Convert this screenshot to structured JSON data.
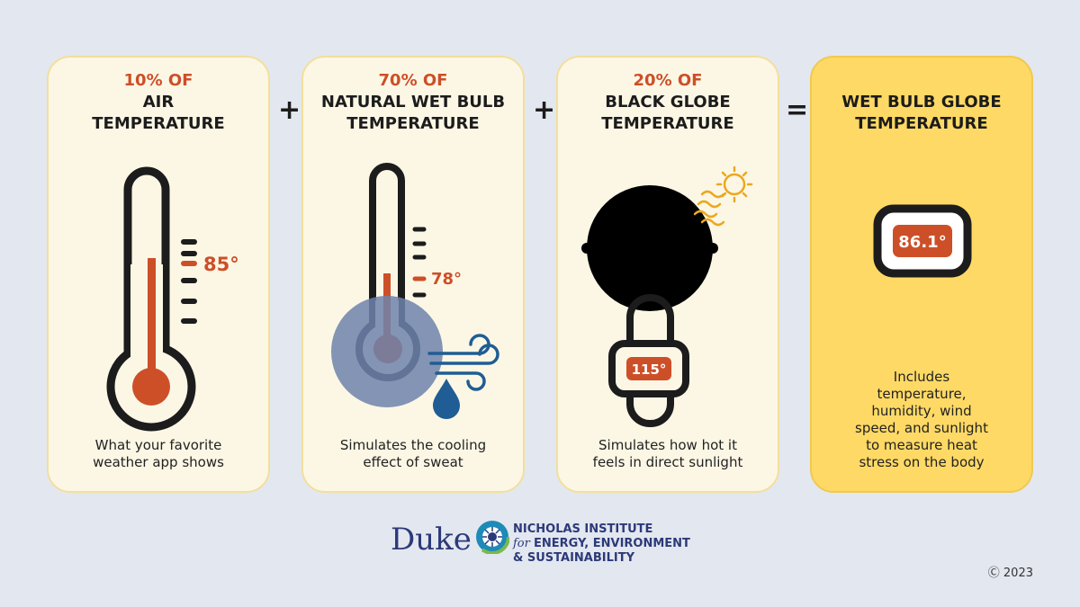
{
  "cards": [
    {
      "pct": "10% OF",
      "title": "AIR\nTEMPERATURE",
      "reading": "85°",
      "desc": "What your favorite\nweather app shows"
    },
    {
      "pct": "70% OF",
      "title": "NATURAL WET BULB\nTEMPERATURE",
      "reading": "78°",
      "desc": "Simulates the cooling\neffect of sweat"
    },
    {
      "pct": "20% OF",
      "title": "BLACK GLOBE\nTEMPERATURE",
      "reading": "115°",
      "desc": "Simulates how hot it\nfeels in direct sunlight"
    },
    {
      "title": "WET BULB GLOBE\nTEMPERATURE",
      "reading": "86.1°",
      "desc": "Includes\ntemperature,\nhumidity, wind\nspeed, and sunlight\nto measure heat\nstress on the body"
    }
  ],
  "operators": [
    "+",
    "+",
    "="
  ],
  "footer": {
    "duke": "Duke",
    "institute_line1": "NICHOLAS INSTITUTE",
    "institute_for": "for",
    "institute_line2": "ENERGY, ENVIRONMENT",
    "institute_line3": "& SUSTAINABILITY",
    "copyright": "Ⓒ 2023"
  },
  "colors": {
    "accent": "#cd4f28",
    "dark": "#1c1c1c",
    "card": "#fcf7e5",
    "result": "#fed965",
    "wet": "#6d82ab",
    "sun": "#eba81f",
    "drop": "#1f5d94"
  }
}
